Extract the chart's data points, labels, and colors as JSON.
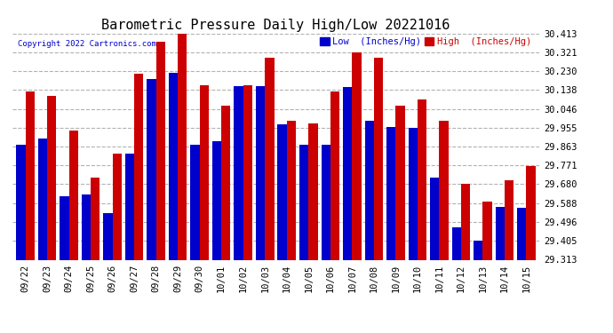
{
  "title": "Barometric Pressure Daily High/Low 20221016",
  "copyright": "Copyright 2022 Cartronics.com",
  "legend_low": "Low  (Inches/Hg)",
  "legend_high": "High  (Inches/Hg)",
  "dates": [
    "09/22",
    "09/23",
    "09/24",
    "09/25",
    "09/26",
    "09/27",
    "09/28",
    "09/29",
    "09/30",
    "10/01",
    "10/02",
    "10/03",
    "10/04",
    "10/05",
    "10/06",
    "10/07",
    "10/08",
    "10/09",
    "10/10",
    "10/11",
    "10/12",
    "10/13",
    "10/14",
    "10/15"
  ],
  "lows": [
    29.87,
    29.9,
    29.62,
    29.63,
    29.54,
    29.83,
    30.19,
    30.22,
    29.87,
    29.89,
    30.155,
    30.155,
    29.97,
    29.87,
    29.87,
    30.15,
    29.99,
    29.96,
    29.955,
    29.71,
    29.47,
    29.405,
    29.57,
    29.565
  ],
  "highs": [
    30.13,
    30.11,
    29.94,
    29.71,
    29.83,
    30.215,
    30.37,
    30.41,
    30.16,
    30.06,
    30.16,
    30.295,
    29.99,
    29.975,
    30.13,
    30.32,
    30.295,
    30.06,
    30.09,
    29.99,
    29.68,
    29.595,
    29.7,
    29.77
  ],
  "ymin": 29.313,
  "ymax": 30.413,
  "yticks": [
    29.313,
    29.405,
    29.496,
    29.588,
    29.68,
    29.771,
    29.863,
    29.955,
    30.046,
    30.138,
    30.23,
    30.321,
    30.413
  ],
  "low_color": "#0000cc",
  "high_color": "#cc0000",
  "bg_color": "#ffffff",
  "grid_color": "#aaaaaa",
  "title_fontsize": 11,
  "tick_fontsize": 7.5,
  "bar_width": 0.42
}
